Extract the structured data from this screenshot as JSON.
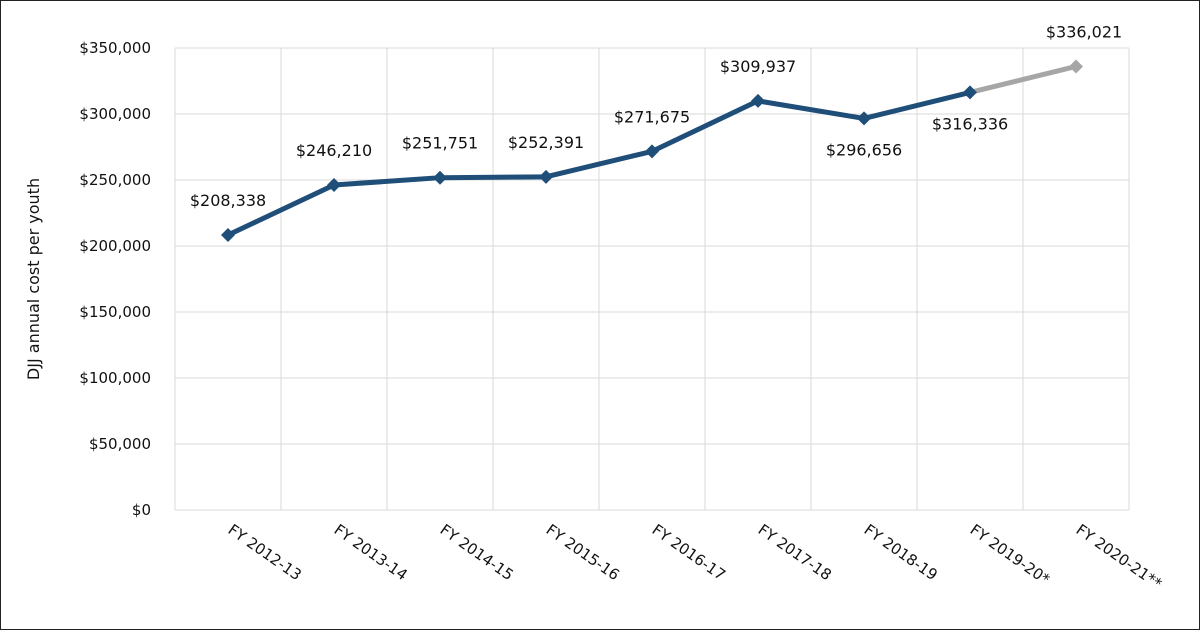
{
  "chart_data": {
    "type": "line",
    "title": "",
    "xlabel": "",
    "ylabel": "DJJ annual cost per youth",
    "categories": [
      "FY 2012-13",
      "FY 2013-14",
      "FY 2014-15",
      "FY 2015-16",
      "FY 2016-17",
      "FY 2017-18",
      "FY 2018-19",
      "FY 2019-20*",
      "FY 2020-21**"
    ],
    "series": [
      {
        "values": [
          208338,
          246210,
          251751,
          252391,
          271675,
          309937,
          296656,
          316336,
          336021
        ],
        "data_labels": [
          "$208,338",
          "$246,210",
          "$251,751",
          "$252,391",
          "$271,675",
          "$309,937",
          "$296,656",
          "$316,336",
          "$336,021"
        ],
        "color": "#1f4e79",
        "projection_color": "#a6a6a6",
        "projection_from_index": 7
      }
    ],
    "ylim": [
      0,
      350000
    ],
    "yticks": [
      0,
      50000,
      100000,
      150000,
      200000,
      250000,
      300000,
      350000
    ],
    "ytick_labels": [
      "$0",
      "$50,000",
      "$100,000",
      "$150,000",
      "$200,000",
      "$250,000",
      "$300,000",
      "$350,000"
    ],
    "grid": true,
    "legend": "none"
  }
}
